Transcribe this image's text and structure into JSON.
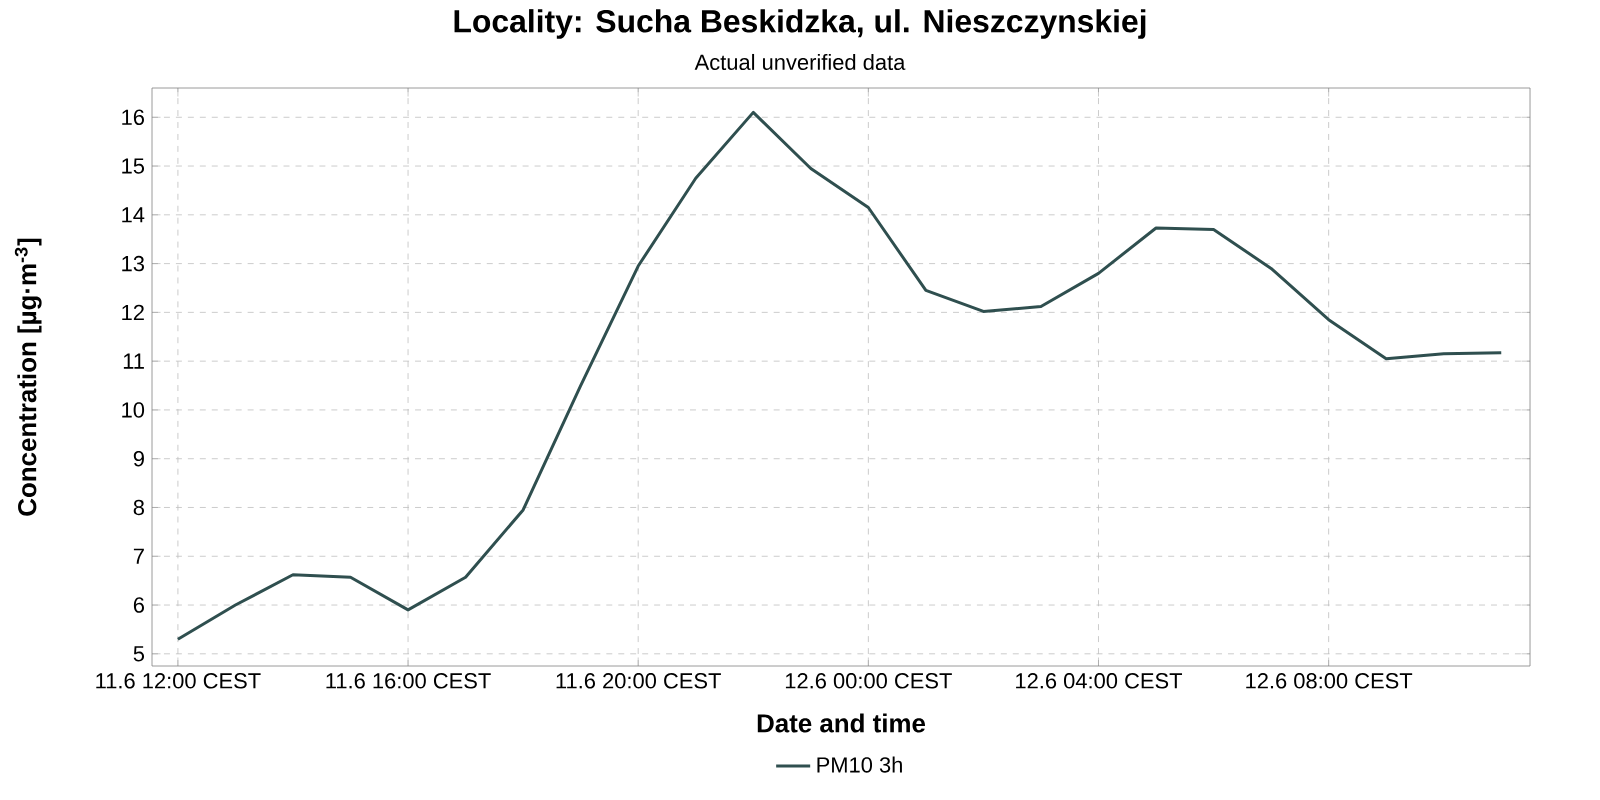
{
  "chart_data": {
    "type": "line",
    "title": "Locality: Sucha Beskidzka, ul. Nieszczynskiej",
    "subtitle": "Actual unverified data",
    "xlabel": "Date and time",
    "ylabel": "Concentration [µg·m$^{-3}$]",
    "categories": [
      "11.6 12:00 CEST",
      null,
      null,
      null,
      "11.6 16:00 CEST",
      null,
      null,
      null,
      "11.6 20:00 CEST",
      null,
      null,
      null,
      "12.6 00:00 CEST",
      null,
      null,
      null,
      "12.6 04:00 CEST",
      null,
      null,
      null,
      "12.6 08:00 CEST",
      null,
      null,
      null
    ],
    "series": [
      {
        "name": "PM10 3h",
        "color": "#2f4f4f",
        "values": [
          5.3,
          6.0,
          6.62,
          6.57,
          5.9,
          6.57,
          7.95,
          10.5,
          12.95,
          14.75,
          16.1,
          14.95,
          14.15,
          12.45,
          12.02,
          12.12,
          12.8,
          13.73,
          13.7,
          12.9,
          11.85,
          11.05,
          11.15,
          11.17
        ]
      }
    ],
    "ylim": [
      4.75,
      16.6
    ],
    "yticks": [
      5,
      6,
      7,
      8,
      9,
      10,
      11,
      12,
      13,
      14,
      15,
      16
    ],
    "grid": true,
    "legend": "bottom",
    "marker": "none",
    "line_style": "solid"
  }
}
